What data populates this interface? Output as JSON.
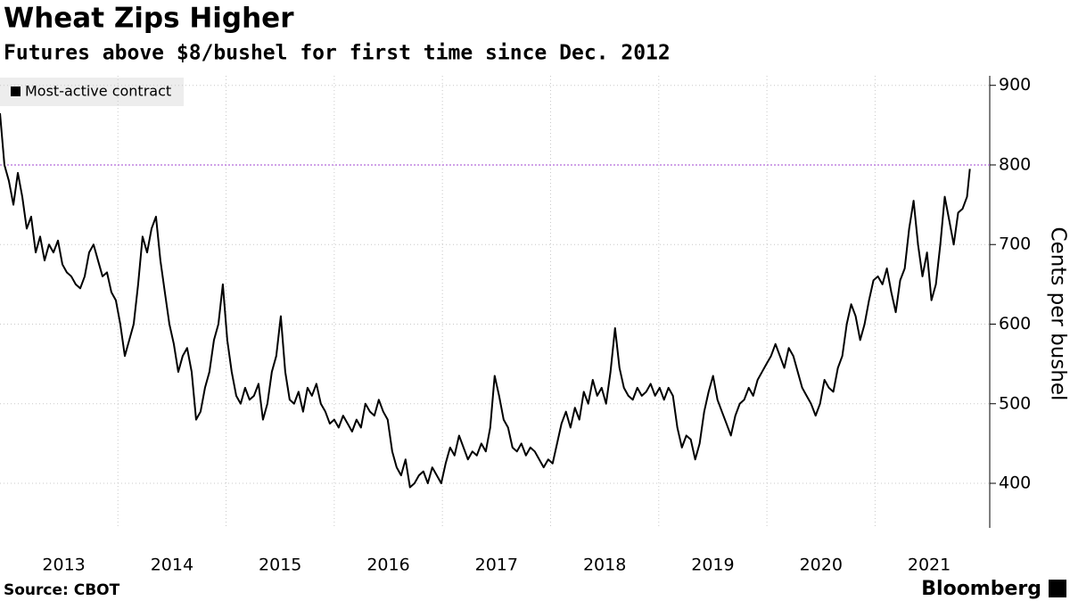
{
  "chart_data": {
    "type": "line",
    "title": "Wheat Zips Higher",
    "subtitle": "Futures above $8/bushel for first time since Dec. 2012",
    "y_label": "Cents per bushel",
    "source": "Source: CBOT",
    "brand": "Bloomberg",
    "xlim": [
      2012.41,
      2021.56
    ],
    "xticks": [
      2013,
      2014,
      2015,
      2016,
      2017,
      2018,
      2019,
      2020,
      2021
    ],
    "ylim": [
      344,
      912
    ],
    "yticks": [
      400,
      500,
      600,
      700,
      800,
      900
    ],
    "grid": true,
    "reference_line": {
      "value": 800,
      "color": "#b36bd9"
    },
    "legend": "top-left",
    "x": [
      2012.41,
      2012.451,
      2012.492,
      2012.534,
      2012.575,
      2012.616,
      2012.657,
      2012.698,
      2012.74,
      2012.781,
      2012.822,
      2012.863,
      2012.904,
      2012.946,
      2012.987,
      2013.028,
      2013.069,
      2013.11,
      2013.152,
      2013.193,
      2013.234,
      2013.275,
      2013.316,
      2013.358,
      2013.399,
      2013.44,
      2013.481,
      2013.522,
      2013.564,
      2013.605,
      2013.646,
      2013.687,
      2013.728,
      2013.77,
      2013.811,
      2013.852,
      2013.893,
      2013.934,
      2013.976,
      2014.017,
      2014.058,
      2014.099,
      2014.14,
      2014.182,
      2014.223,
      2014.264,
      2014.305,
      2014.346,
      2014.388,
      2014.429,
      2014.47,
      2014.511,
      2014.552,
      2014.594,
      2014.635,
      2014.676,
      2014.717,
      2014.758,
      2014.8,
      2014.841,
      2014.882,
      2014.923,
      2014.964,
      2015.006,
      2015.047,
      2015.088,
      2015.129,
      2015.17,
      2015.212,
      2015.253,
      2015.294,
      2015.335,
      2015.376,
      2015.418,
      2015.459,
      2015.5,
      2015.541,
      2015.582,
      2015.624,
      2015.665,
      2015.706,
      2015.747,
      2015.788,
      2015.83,
      2015.871,
      2015.912,
      2015.953,
      2015.994,
      2016.036,
      2016.077,
      2016.118,
      2016.159,
      2016.2,
      2016.242,
      2016.283,
      2016.324,
      2016.365,
      2016.406,
      2016.448,
      2016.489,
      2016.53,
      2016.571,
      2016.612,
      2016.654,
      2016.695,
      2016.736,
      2016.777,
      2016.818,
      2016.86,
      2016.901,
      2016.942,
      2016.983,
      2017.024,
      2017.066,
      2017.107,
      2017.148,
      2017.189,
      2017.23,
      2017.272,
      2017.313,
      2017.354,
      2017.395,
      2017.436,
      2017.478,
      2017.519,
      2017.56,
      2017.601,
      2017.642,
      2017.684,
      2017.725,
      2017.766,
      2017.807,
      2017.848,
      2017.89,
      2017.931,
      2017.972,
      2018.013,
      2018.054,
      2018.096,
      2018.137,
      2018.178,
      2018.219,
      2018.26,
      2018.302,
      2018.343,
      2018.384,
      2018.425,
      2018.466,
      2018.508,
      2018.549,
      2018.59,
      2018.631,
      2018.672,
      2018.714,
      2018.755,
      2018.796,
      2018.837,
      2018.878,
      2018.92,
      2018.961,
      2019.002,
      2019.043,
      2019.084,
      2019.126,
      2019.167,
      2019.208,
      2019.249,
      2019.29,
      2019.332,
      2019.373,
      2019.414,
      2019.455,
      2019.496,
      2019.538,
      2019.579,
      2019.62,
      2019.661,
      2019.702,
      2019.744,
      2019.785,
      2019.826,
      2019.867,
      2019.908,
      2019.95,
      2019.991,
      2020.032,
      2020.073,
      2020.114,
      2020.156,
      2020.197,
      2020.238,
      2020.279,
      2020.32,
      2020.362,
      2020.403,
      2020.444,
      2020.485,
      2020.526,
      2020.568,
      2020.609,
      2020.65,
      2020.691,
      2020.732,
      2020.774,
      2020.815,
      2020.856,
      2020.897,
      2020.938,
      2020.98,
      2021.021,
      2021.062,
      2021.103,
      2021.144,
      2021.186,
      2021.227,
      2021.268,
      2021.309,
      2021.35,
      2021.376
    ],
    "series": [
      {
        "name": "Most-active contract",
        "color": "#000000",
        "values": [
          865,
          800,
          780,
          750,
          790,
          760,
          720,
          735,
          690,
          710,
          680,
          700,
          690,
          705,
          675,
          665,
          660,
          650,
          645,
          660,
          690,
          700,
          680,
          660,
          665,
          640,
          630,
          600,
          560,
          580,
          600,
          650,
          710,
          690,
          720,
          735,
          680,
          640,
          600,
          575,
          540,
          560,
          570,
          540,
          480,
          490,
          520,
          540,
          580,
          600,
          650,
          580,
          540,
          510,
          500,
          520,
          505,
          510,
          525,
          480,
          500,
          540,
          560,
          610,
          540,
          505,
          500,
          515,
          490,
          520,
          510,
          525,
          500,
          490,
          475,
          480,
          470,
          485,
          475,
          465,
          480,
          470,
          500,
          490,
          485,
          505,
          490,
          480,
          440,
          420,
          410,
          430,
          395,
          400,
          410,
          415,
          400,
          420,
          410,
          400,
          425,
          445,
          435,
          460,
          445,
          430,
          440,
          435,
          450,
          440,
          470,
          535,
          510,
          480,
          470,
          445,
          440,
          450,
          435,
          445,
          440,
          430,
          420,
          430,
          425,
          450,
          475,
          490,
          470,
          495,
          480,
          515,
          500,
          530,
          510,
          520,
          500,
          540,
          595,
          545,
          520,
          510,
          505,
          520,
          510,
          515,
          525,
          510,
          520,
          505,
          520,
          510,
          470,
          445,
          460,
          455,
          430,
          450,
          490,
          515,
          535,
          505,
          490,
          475,
          460,
          485,
          500,
          505,
          520,
          510,
          530,
          540,
          550,
          560,
          575,
          560,
          545,
          570,
          560,
          540,
          520,
          510,
          500,
          485,
          500,
          530,
          520,
          515,
          545,
          560,
          600,
          625,
          610,
          580,
          600,
          630,
          655,
          660,
          650,
          670,
          640,
          615,
          655,
          670,
          720,
          755,
          700,
          660,
          690,
          630,
          650,
          700,
          760,
          730,
          700,
          740,
          745,
          760,
          795
        ]
      }
    ]
  }
}
